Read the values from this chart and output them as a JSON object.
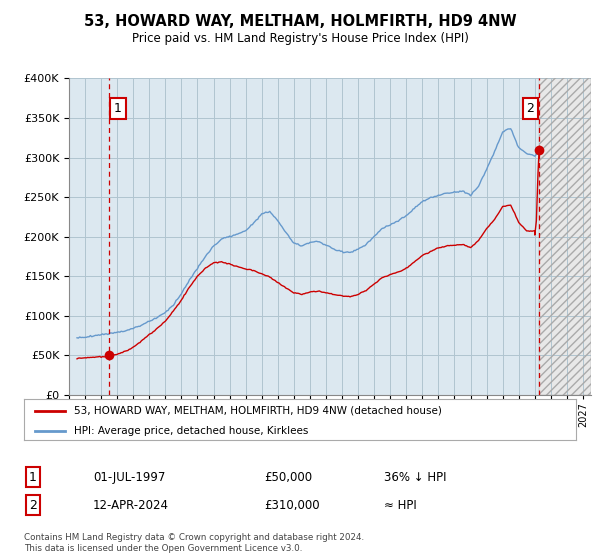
{
  "title": "53, HOWARD WAY, MELTHAM, HOLMFIRTH, HD9 4NW",
  "subtitle": "Price paid vs. HM Land Registry's House Price Index (HPI)",
  "legend_line1": "53, HOWARD WAY, MELTHAM, HOLMFIRTH, HD9 4NW (detached house)",
  "legend_line2": "HPI: Average price, detached house, Kirklees",
  "annotation1_label": "1",
  "annotation1_date": "01-JUL-1997",
  "annotation1_price": "£50,000",
  "annotation1_hpi": "36% ↓ HPI",
  "annotation2_label": "2",
  "annotation2_date": "12-APR-2024",
  "annotation2_price": "£310,000",
  "annotation2_hpi": "≈ HPI",
  "footer": "Contains HM Land Registry data © Crown copyright and database right 2024.\nThis data is licensed under the Open Government Licence v3.0.",
  "red_line_color": "#cc0000",
  "blue_line_color": "#6699cc",
  "dashed_line_color": "#cc0000",
  "annotation_box_color": "#cc0000",
  "plot_bg_color": "#dce8f0",
  "hatch_bg_color": "#e8e8e8",
  "background_color": "#ffffff",
  "grid_color": "#b0c4d0",
  "ylim": [
    0,
    400000
  ],
  "xlim_start": 1995.3,
  "xlim_end": 2027.5,
  "transaction1_x": 1997.5,
  "transaction1_y": 50000,
  "transaction2_x": 2024.27,
  "transaction2_y": 310000,
  "hatch_start": 2024.27
}
